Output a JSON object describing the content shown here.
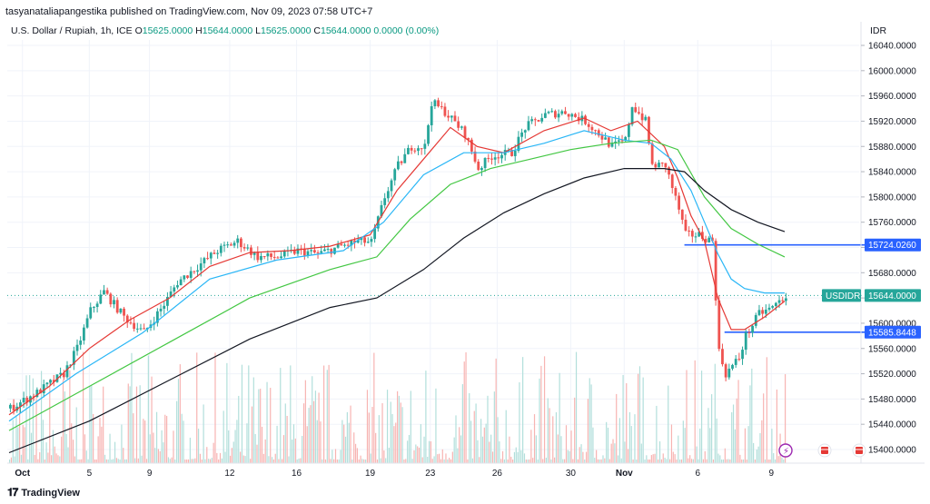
{
  "publish_line": "tasyanataliapangestika published on TradingView.com, Nov 09, 2023 07:58 UTC+7",
  "legend": {
    "symbol": "U.S. Dollar / Rupiah, 1h, ICE",
    "o_label": "O",
    "o": "15625.0000",
    "h_label": "H",
    "h": "15644.0000",
    "l_label": "L",
    "l": "15625.0000",
    "c_label": "C",
    "c": "15644.0000",
    "change": "0.0000 (0.00%)"
  },
  "currency": "IDR",
  "brand": "TradingView",
  "colors": {
    "up": "#26a69a",
    "down": "#ef5350",
    "ema_red": "#e53935",
    "ema_blue": "#29b6f6",
    "ema_green": "#43c743",
    "ema_black": "#131722",
    "hline": "#2962ff",
    "last_price": "#26a69a"
  },
  "chart_data": {
    "type": "candlestick",
    "symbol": "USDIDR",
    "ylim": [
      15375,
      16060
    ],
    "y_ticks": [
      "16040.0000",
      "16000.0000",
      "15960.0000",
      "15920.0000",
      "15880.0000",
      "15840.0000",
      "15800.0000",
      "15760.0000",
      "15720.0000",
      "15680.0000",
      "15640.0000",
      "15600.0000",
      "15560.0000",
      "15520.0000",
      "15480.0000",
      "15440.0000",
      "15400.0000"
    ],
    "x_ticks": [
      {
        "label": "Oct",
        "bold": true
      },
      {
        "label": "5",
        "bold": false
      },
      {
        "label": "9",
        "bold": false
      },
      {
        "label": "12",
        "bold": false
      },
      {
        "label": "16",
        "bold": false
      },
      {
        "label": "19",
        "bold": false
      },
      {
        "label": "23",
        "bold": false
      },
      {
        "label": "26",
        "bold": false
      },
      {
        "label": "30",
        "bold": false
      },
      {
        "label": "Nov",
        "bold": true
      },
      {
        "label": "6",
        "bold": false
      },
      {
        "label": "9",
        "bold": false
      }
    ],
    "price_path": [
      [
        0,
        15465
      ],
      [
        4,
        15490
      ],
      [
        8,
        15520
      ],
      [
        10,
        15560
      ],
      [
        12,
        15620
      ],
      [
        14,
        15650
      ],
      [
        17,
        15610
      ],
      [
        20,
        15585
      ],
      [
        23,
        15630
      ],
      [
        25,
        15665
      ],
      [
        28,
        15690
      ],
      [
        31,
        15715
      ],
      [
        34,
        15730
      ],
      [
        37,
        15705
      ],
      [
        40,
        15705
      ],
      [
        43,
        15715
      ],
      [
        46,
        15710
      ],
      [
        49,
        15720
      ],
      [
        52,
        15730
      ],
      [
        54,
        15728
      ],
      [
        56,
        15800
      ],
      [
        58,
        15850
      ],
      [
        60,
        15880
      ],
      [
        62,
        15880
      ],
      [
        63,
        15950
      ],
      [
        65,
        15935
      ],
      [
        68,
        15900
      ],
      [
        70,
        15845
      ],
      [
        72,
        15865
      ],
      [
        75,
        15870
      ],
      [
        77,
        15910
      ],
      [
        80,
        15930
      ],
      [
        83,
        15935
      ],
      [
        86,
        15920
      ],
      [
        88,
        15900
      ],
      [
        90,
        15880
      ],
      [
        92,
        15890
      ],
      [
        93,
        15945
      ],
      [
        95,
        15920
      ],
      [
        96,
        15850
      ],
      [
        98,
        15850
      ],
      [
        100,
        15780
      ],
      [
        101,
        15740
      ],
      [
        103,
        15740
      ],
      [
        105,
        15730
      ],
      [
        106,
        15555
      ],
      [
        107,
        15520
      ],
      [
        109,
        15545
      ],
      [
        110,
        15580
      ],
      [
        112,
        15615
      ],
      [
        114,
        15625
      ],
      [
        116,
        15644
      ]
    ],
    "series": [
      {
        "name": "EMA red",
        "color": "#e53935",
        "values": [
          [
            0,
            15455
          ],
          [
            6,
            15500
          ],
          [
            12,
            15560
          ],
          [
            18,
            15605
          ],
          [
            24,
            15640
          ],
          [
            30,
            15690
          ],
          [
            36,
            15712
          ],
          [
            42,
            15715
          ],
          [
            48,
            15722
          ],
          [
            54,
            15740
          ],
          [
            58,
            15810
          ],
          [
            62,
            15860
          ],
          [
            66,
            15910
          ],
          [
            70,
            15880
          ],
          [
            74,
            15870
          ],
          [
            80,
            15905
          ],
          [
            86,
            15925
          ],
          [
            90,
            15905
          ],
          [
            94,
            15920
          ],
          [
            98,
            15880
          ],
          [
            100,
            15830
          ],
          [
            102,
            15770
          ],
          [
            104,
            15730
          ],
          [
            106,
            15640
          ],
          [
            108,
            15590
          ],
          [
            110,
            15590
          ],
          [
            113,
            15610
          ],
          [
            116,
            15635
          ]
        ]
      },
      {
        "name": "EMA blue",
        "color": "#29b6f6",
        "values": [
          [
            0,
            15445
          ],
          [
            10,
            15520
          ],
          [
            20,
            15585
          ],
          [
            30,
            15670
          ],
          [
            40,
            15700
          ],
          [
            50,
            15715
          ],
          [
            56,
            15760
          ],
          [
            62,
            15835
          ],
          [
            68,
            15870
          ],
          [
            74,
            15870
          ],
          [
            80,
            15885
          ],
          [
            86,
            15905
          ],
          [
            92,
            15890
          ],
          [
            96,
            15885
          ],
          [
            99,
            15860
          ],
          [
            102,
            15810
          ],
          [
            104,
            15760
          ],
          [
            106,
            15710
          ],
          [
            108,
            15670
          ],
          [
            110,
            15655
          ],
          [
            113,
            15648
          ],
          [
            116,
            15648
          ]
        ]
      },
      {
        "name": "EMA green",
        "color": "#43c743",
        "values": [
          [
            0,
            15430
          ],
          [
            12,
            15500
          ],
          [
            24,
            15570
          ],
          [
            36,
            15640
          ],
          [
            48,
            15685
          ],
          [
            55,
            15705
          ],
          [
            60,
            15765
          ],
          [
            66,
            15820
          ],
          [
            72,
            15845
          ],
          [
            78,
            15860
          ],
          [
            84,
            15875
          ],
          [
            90,
            15885
          ],
          [
            96,
            15890
          ],
          [
            100,
            15875
          ],
          [
            104,
            15800
          ],
          [
            108,
            15750
          ],
          [
            112,
            15725
          ],
          [
            116,
            15705
          ]
        ]
      },
      {
        "name": "EMA black",
        "color": "#131722",
        "values": [
          [
            0,
            15395
          ],
          [
            12,
            15445
          ],
          [
            24,
            15510
          ],
          [
            36,
            15575
          ],
          [
            48,
            15625
          ],
          [
            55,
            15640
          ],
          [
            62,
            15685
          ],
          [
            68,
            15735
          ],
          [
            74,
            15775
          ],
          [
            80,
            15805
          ],
          [
            86,
            15830
          ],
          [
            92,
            15845
          ],
          [
            98,
            15845
          ],
          [
            101,
            15840
          ],
          [
            104,
            15810
          ],
          [
            108,
            15780
          ],
          [
            112,
            15760
          ],
          [
            116,
            15745
          ]
        ]
      }
    ],
    "horizontal_lines": [
      {
        "label": "15724.0260",
        "value": 15724.026,
        "x_start": 101
      },
      {
        "label": "15585.8448",
        "value": 15585.8448,
        "x_start": 107
      }
    ],
    "last_price": {
      "symbol_label": "USDIDR",
      "value_label": "15644.0000",
      "value": 15644
    },
    "grid": true,
    "volume": true
  }
}
